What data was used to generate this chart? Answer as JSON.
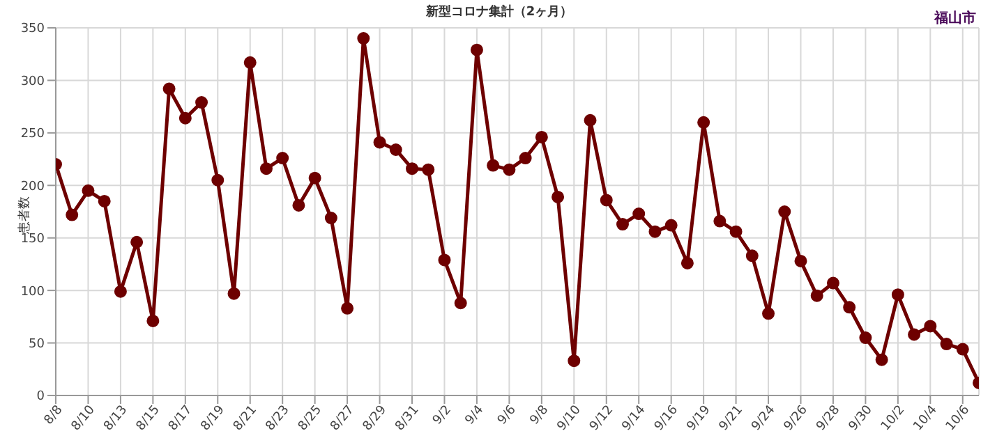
{
  "chart_data": {
    "type": "line",
    "title": "新型コロナ集計（2ヶ月）",
    "ylabel": "患者数",
    "annotations": [
      "福山市"
    ],
    "categories": [
      "8/8",
      null,
      "8/10",
      null,
      "8/13",
      null,
      "8/15",
      null,
      "8/17",
      null,
      "8/19",
      null,
      "8/21",
      null,
      "8/23",
      null,
      "8/25",
      null,
      "8/27",
      null,
      "8/29",
      null,
      "8/31",
      null,
      "9/2",
      null,
      "9/4",
      null,
      "9/6",
      null,
      "9/8",
      null,
      "9/10",
      null,
      "9/12",
      null,
      "9/14",
      null,
      "9/16",
      null,
      "9/19",
      null,
      "9/21",
      null,
      "9/24",
      null,
      "9/26",
      null,
      "9/28",
      null,
      "9/30",
      null,
      "10/2",
      null,
      "10/4",
      null,
      "10/6",
      null
    ],
    "series": [
      {
        "color": "#6e0000",
        "values": [
          220,
          172,
          195,
          185,
          99,
          146,
          71,
          292,
          264,
          279,
          205,
          97,
          317,
          216,
          226,
          181,
          207,
          169,
          83,
          340,
          241,
          234,
          216,
          215,
          129,
          88,
          329,
          219,
          215,
          226,
          246,
          189,
          33,
          262,
          186,
          163,
          173,
          156,
          162,
          126,
          260,
          166,
          156,
          133,
          78,
          175,
          128,
          95,
          107,
          84,
          55,
          34,
          96,
          58,
          66,
          49,
          44,
          12
        ]
      }
    ],
    "ylim": [
      0,
      350
    ],
    "yticks": [
      0,
      50,
      100,
      150,
      200,
      250,
      300,
      350
    ],
    "grid": true,
    "marker": "circle",
    "line_style": "solid",
    "legend": false
  }
}
